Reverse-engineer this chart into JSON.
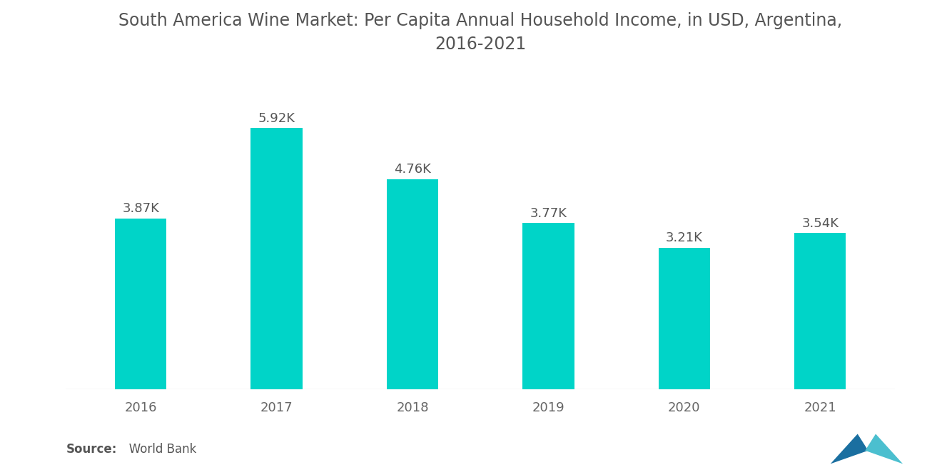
{
  "title": "South America Wine Market: Per Capita Annual Household Income, in USD, Argentina,\n2016-2021",
  "categories": [
    "2016",
    "2017",
    "2018",
    "2019",
    "2020",
    "2021"
  ],
  "values": [
    3.87,
    5.92,
    4.76,
    3.77,
    3.21,
    3.54
  ],
  "labels": [
    "3.87K",
    "5.92K",
    "4.76K",
    "3.77K",
    "3.21K",
    "3.54K"
  ],
  "bar_color": "#00D4C8",
  "background_color": "#ffffff",
  "title_color": "#555555",
  "label_color": "#555555",
  "tick_color": "#666666",
  "source_bold": "Source:",
  "source_normal": "   World Bank",
  "title_fontsize": 17,
  "label_fontsize": 13,
  "tick_fontsize": 13,
  "source_fontsize": 12,
  "ylim": [
    0,
    7.2
  ],
  "bar_width": 0.38,
  "logo_color1": "#1a6fa0",
  "logo_color2": "#4bbfcf"
}
